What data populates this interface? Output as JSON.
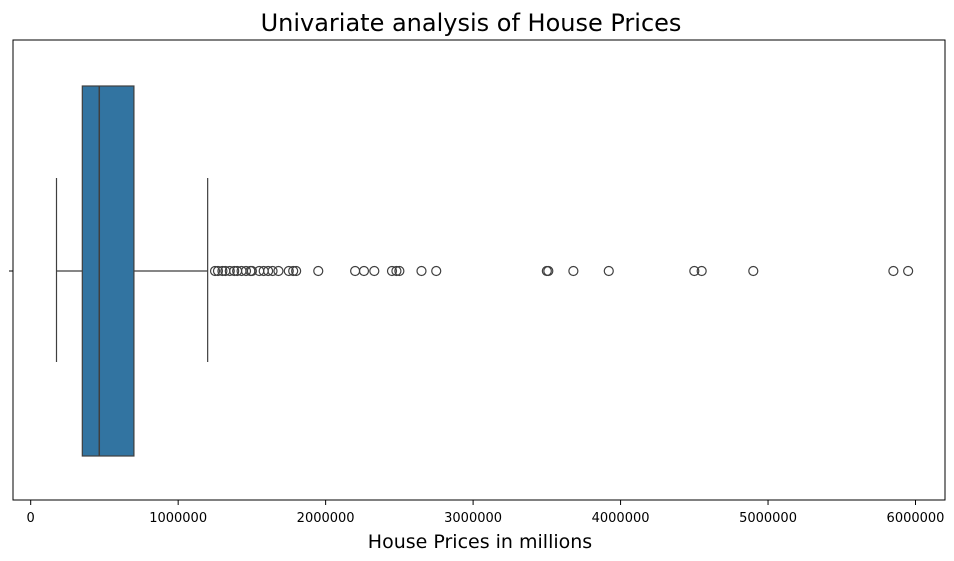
{
  "chart_data": {
    "type": "boxplot",
    "orientation": "horizontal",
    "title": "Univariate analysis of House Prices",
    "xlabel": "House Prices in millions",
    "ylabel": "",
    "xlim": [
      -120000,
      6200000
    ],
    "xticks": [
      0,
      1000000,
      2000000,
      3000000,
      4000000,
      5000000,
      6000000
    ],
    "xtick_labels": [
      "0",
      "1000000",
      "2000000",
      "3000000",
      "4000000",
      "5000000",
      "6000000"
    ],
    "grid": false,
    "box_color": "#3274a1",
    "line_color": "#3f3f3f",
    "stats": {
      "whisker_low": 175000,
      "q1": 350000,
      "median": 465000,
      "q3": 700000,
      "whisker_high": 1200000
    },
    "outliers": [
      1250000,
      1270000,
      1300000,
      1320000,
      1350000,
      1380000,
      1400000,
      1430000,
      1460000,
      1490000,
      1500000,
      1550000,
      1580000,
      1610000,
      1640000,
      1680000,
      1750000,
      1780000,
      1800000,
      1950000,
      2200000,
      2260000,
      2330000,
      2450000,
      2480000,
      2500000,
      2650000,
      2750000,
      3500000,
      3510000,
      3680000,
      3920000,
      4500000,
      4550000,
      4900000,
      5850000,
      5950000
    ]
  }
}
